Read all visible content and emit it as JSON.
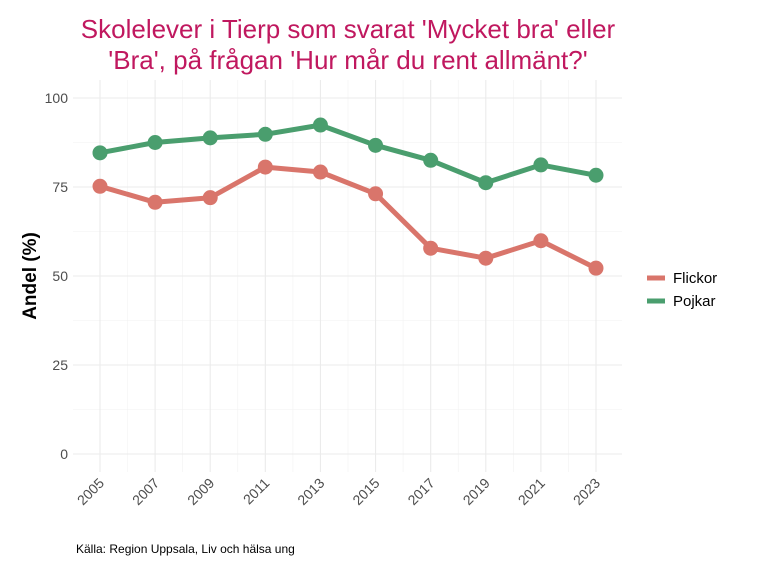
{
  "chart_data": {
    "type": "line",
    "title_lines": [
      "Skolelever i Tierp som svarat 'Mycket bra' eller",
      "'Bra', på frågan 'Hur mår du rent allmänt?'"
    ],
    "xlabel": "",
    "ylabel": "Andel (%)",
    "x": [
      "2005",
      "2007",
      "2009",
      "2011",
      "2013",
      "2015",
      "2017",
      "2019",
      "2021",
      "2023"
    ],
    "ylim": [
      0,
      100
    ],
    "yticks": [
      "0",
      "25",
      "50",
      "75",
      "100"
    ],
    "grid": true,
    "legend_position": "right",
    "series": [
      {
        "name": "Flickor",
        "color": "#d9756b",
        "values": [
          75.2,
          70.7,
          72.0,
          80.6,
          79.2,
          73.1,
          57.8,
          55.0,
          59.9,
          52.2
        ]
      },
      {
        "name": "Pojkar",
        "color": "#4a9e6e",
        "values": [
          84.6,
          87.5,
          88.8,
          89.8,
          92.4,
          86.7,
          82.5,
          76.2,
          81.2,
          78.3
        ]
      }
    ],
    "caption": "Källa: Region Uppsala, Liv och hälsa ung",
    "title_color": "#c0185f"
  }
}
